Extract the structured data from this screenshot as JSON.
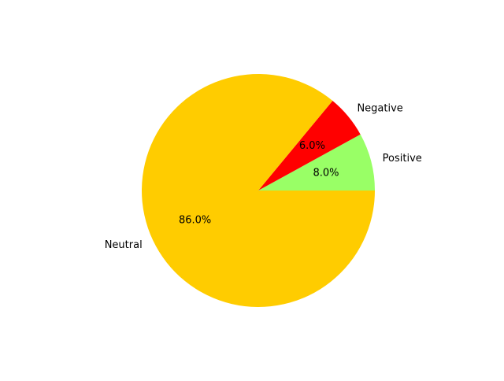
{
  "chart_data": {
    "type": "pie",
    "labels": [
      "Positive",
      "Negative",
      "Neutral"
    ],
    "values": [
      8.0,
      6.0,
      86.0
    ],
    "percent_labels": [
      "8.0%",
      "6.0%",
      "86.0%"
    ],
    "colors": [
      "#99ff66",
      "#ff0000",
      "#ffcc00"
    ],
    "start_angle_deg": 0,
    "direction": "counterclockwise",
    "legend": "none"
  }
}
